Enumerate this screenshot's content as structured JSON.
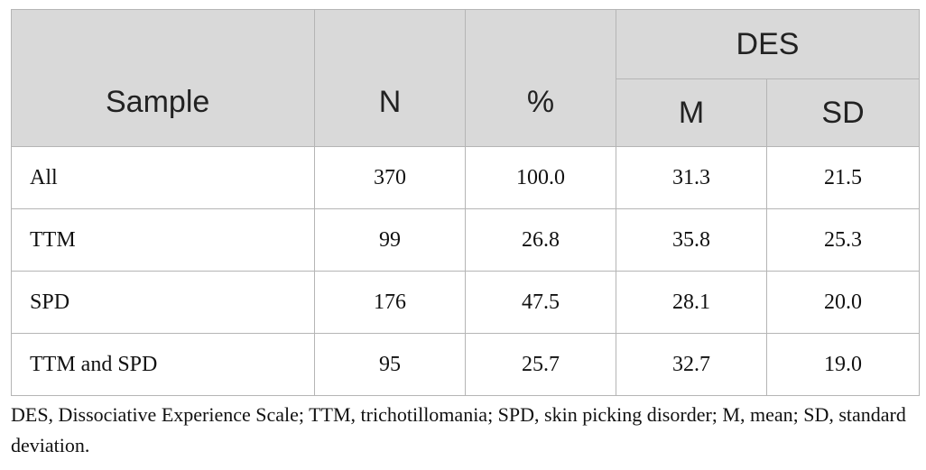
{
  "table": {
    "headers": {
      "sample": "Sample",
      "n": "N",
      "percent": "%",
      "group": "DES",
      "mean": "M",
      "sd": "SD"
    },
    "rows": [
      {
        "sample": "All",
        "n": "370",
        "percent": "100.0",
        "mean": "31.3",
        "sd": "21.5"
      },
      {
        "sample": "TTM",
        "n": "99",
        "percent": "26.8",
        "mean": "35.8",
        "sd": "25.3"
      },
      {
        "sample": "SPD",
        "n": "176",
        "percent": "47.5",
        "mean": "28.1",
        "sd": "20.0"
      },
      {
        "sample": "TTM and SPD",
        "n": "95",
        "percent": "25.7",
        "mean": "32.7",
        "sd": "19.0"
      }
    ]
  },
  "footnote": "DES, Dissociative Experience Scale; TTM, trichotillomania; SPD, skin picking disorder; M, mean; SD, standard deviation.",
  "colors": {
    "header_bg": "#d9d9d9",
    "border": "#b5b5b5"
  }
}
